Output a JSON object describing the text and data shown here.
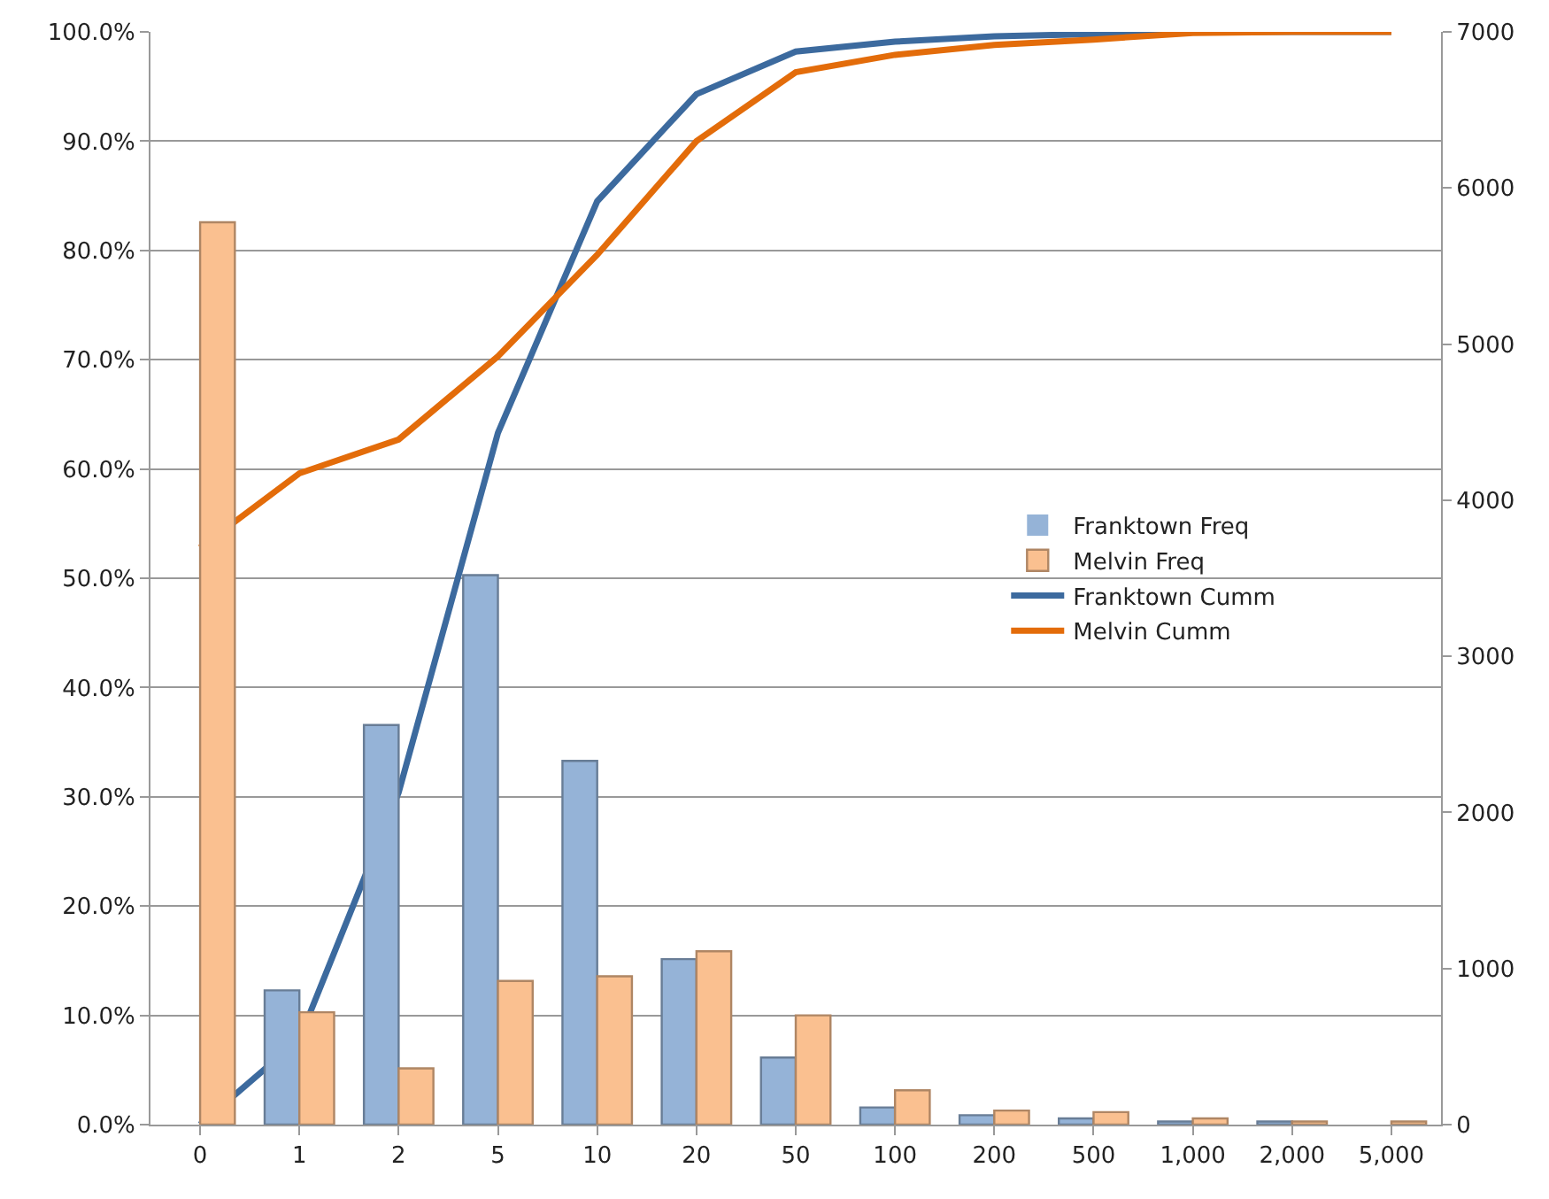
{
  "chart_data": {
    "type": "bar",
    "categories": [
      "0",
      "1",
      "2",
      "5",
      "10",
      "20",
      "50",
      "100",
      "200",
      "500",
      "1,000",
      "2,000",
      "5,000"
    ],
    "series": [
      {
        "name": "Franktown Freq",
        "axis": "y2",
        "color": "#95b3d7",
        "values": [
          0,
          860,
          2560,
          3520,
          2330,
          1060,
          430,
          110,
          60,
          40,
          20,
          20,
          0
        ]
      },
      {
        "name": "Melvin Freq",
        "axis": "y2",
        "color": "#fac090",
        "values": [
          5780,
          720,
          360,
          920,
          950,
          1110,
          700,
          220,
          90,
          80,
          40,
          20,
          20
        ]
      },
      {
        "name": "Franktown Cumm",
        "type": "line",
        "color": "#3c6a9e",
        "values": [
          0,
          7.8,
          30.4,
          63.3,
          84.5,
          94.3,
          98.2,
          99.1,
          99.6,
          99.8,
          100,
          100,
          100
        ]
      },
      {
        "name": "Melvin Cumm",
        "type": "line",
        "color": "#e36c0a",
        "values": [
          52.8,
          59.6,
          62.7,
          70.3,
          79.6,
          90,
          96.3,
          97.9,
          98.8,
          99.3,
          99.9,
          100,
          100
        ]
      }
    ],
    "ylim": [
      0,
      100
    ],
    "yticks": [
      {
        "value": 0,
        "label": "0.0%"
      },
      {
        "value": 10,
        "label": "10.0%"
      },
      {
        "value": 20,
        "label": "20.0%"
      },
      {
        "value": 30,
        "label": "30.0%"
      },
      {
        "value": 40,
        "label": "40.0%"
      },
      {
        "value": 50,
        "label": "50.0%"
      },
      {
        "value": 60,
        "label": "60.0%"
      },
      {
        "value": 70,
        "label": "70.0%"
      },
      {
        "value": 80,
        "label": "80.0%"
      },
      {
        "value": 90,
        "label": "90.0%"
      },
      {
        "value": 100,
        "label": "100.0%"
      }
    ],
    "y2lim": [
      0,
      7000
    ],
    "y2ticks": [
      0,
      1000,
      2000,
      3000,
      4000,
      5000,
      6000,
      7000
    ],
    "grid": "y",
    "legend": "right",
    "marker": "none",
    "line_style": "solid"
  }
}
